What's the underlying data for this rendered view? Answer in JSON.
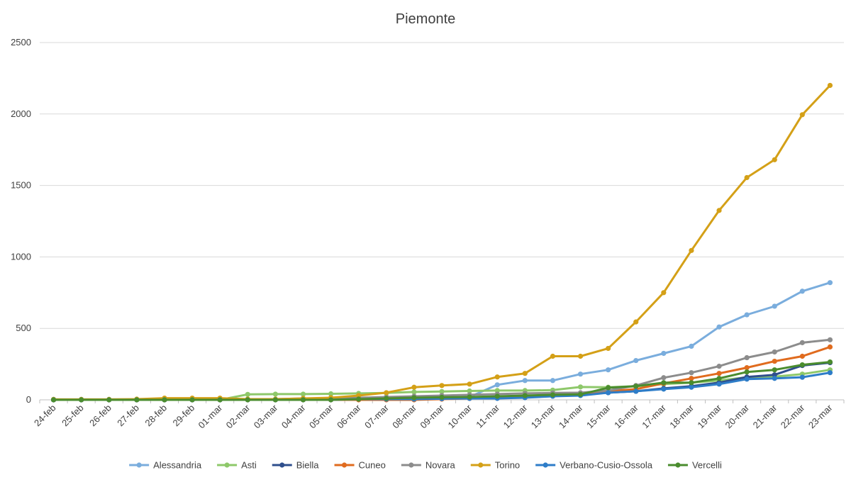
{
  "chart_data": {
    "type": "line",
    "title": "Piemonte",
    "xlabel": "",
    "ylabel": "",
    "ylim": [
      0,
      2500
    ],
    "yticks": [
      0,
      500,
      1000,
      1500,
      2000,
      2500
    ],
    "grid": "horizontal",
    "legend_position": "bottom",
    "categories": [
      "24-feb",
      "25-feb",
      "26-feb",
      "27-feb",
      "28-feb",
      "29-feb",
      "01-mar",
      "02-mar",
      "03-mar",
      "04-mar",
      "05-mar",
      "06-mar",
      "07-mar",
      "08-mar",
      "09-mar",
      "10-mar",
      "11-mar",
      "12-mar",
      "13-mar",
      "14-mar",
      "15-mar",
      "16-mar",
      "17-mar",
      "18-mar",
      "19-mar",
      "20-mar",
      "21-mar",
      "22-mar",
      "23-mar"
    ],
    "series": [
      {
        "name": "Alessandria",
        "color": "#7aaddd",
        "values": [
          3,
          3,
          3,
          3,
          3,
          3,
          3,
          3,
          3,
          5,
          5,
          8,
          10,
          12,
          15,
          20,
          105,
          135,
          135,
          180,
          210,
          275,
          325,
          375,
          510,
          595,
          655,
          760,
          820
        ]
      },
      {
        "name": "Asti",
        "color": "#8ec86a",
        "values": [
          0,
          0,
          0,
          0,
          0,
          0,
          0,
          38,
          40,
          40,
          42,
          45,
          48,
          55,
          58,
          62,
          65,
          65,
          68,
          90,
          88,
          95,
          110,
          120,
          135,
          158,
          162,
          180,
          210
        ]
      },
      {
        "name": "Biella",
        "color": "#2e4e8c",
        "values": [
          0,
          0,
          0,
          0,
          0,
          0,
          0,
          2,
          2,
          3,
          5,
          5,
          5,
          8,
          10,
          10,
          12,
          20,
          30,
          35,
          50,
          60,
          80,
          95,
          120,
          160,
          175,
          240,
          260
        ]
      },
      {
        "name": "Cuneo",
        "color": "#e06b1e",
        "values": [
          0,
          0,
          0,
          0,
          0,
          0,
          0,
          0,
          0,
          0,
          0,
          0,
          0,
          0,
          5,
          10,
          15,
          20,
          30,
          35,
          60,
          75,
          115,
          150,
          185,
          225,
          270,
          305,
          370
        ]
      },
      {
        "name": "Novara",
        "color": "#8c8c8c",
        "values": [
          0,
          0,
          0,
          0,
          0,
          0,
          0,
          5,
          5,
          10,
          10,
          15,
          20,
          25,
          30,
          35,
          40,
          45,
          48,
          50,
          65,
          100,
          155,
          190,
          235,
          295,
          335,
          400,
          420
        ]
      },
      {
        "name": "Torino",
        "color": "#d4a017",
        "values": [
          3,
          3,
          3,
          5,
          12,
          12,
          12,
          5,
          5,
          10,
          15,
          30,
          50,
          88,
          100,
          110,
          160,
          185,
          305,
          305,
          360,
          545,
          750,
          1045,
          1325,
          1555,
          1680,
          1995,
          2200
        ]
      },
      {
        "name": "Verbano-Cusio-Ossola",
        "color": "#2e7dc8",
        "values": [
          0,
          0,
          0,
          0,
          0,
          0,
          0,
          0,
          0,
          0,
          0,
          5,
          5,
          5,
          8,
          10,
          10,
          15,
          25,
          30,
          50,
          60,
          75,
          88,
          110,
          145,
          150,
          158,
          190
        ]
      },
      {
        "name": "Vercelli",
        "color": "#4a8c2e",
        "values": [
          0,
          0,
          0,
          0,
          0,
          0,
          0,
          0,
          0,
          0,
          0,
          5,
          10,
          15,
          18,
          20,
          25,
          30,
          35,
          38,
          85,
          95,
          120,
          120,
          150,
          195,
          210,
          245,
          265
        ]
      }
    ]
  }
}
